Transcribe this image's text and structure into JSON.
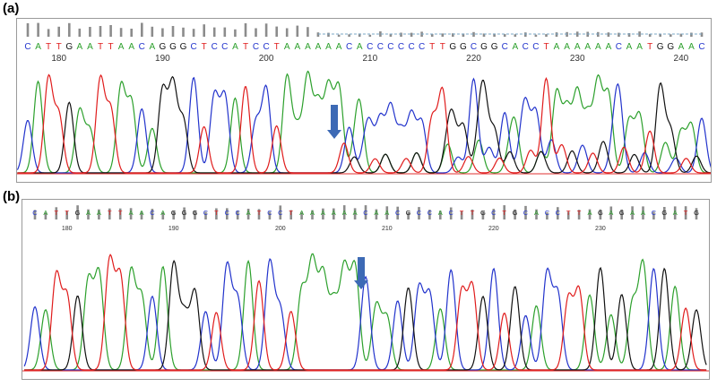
{
  "figure": {
    "panels": [
      {
        "label": "(a)",
        "sequence": "CATTGAATTAACAGGGCTCCATCCTAAAAAACACCCCCCTTGGCGGCACCTAAAAAACAATGGAAC",
        "positions": [
          "180",
          "190",
          "200",
          "210",
          "220",
          "230",
          "240"
        ]
      },
      {
        "label": "(b)",
        "sequence": "CATTGAATTAACAGGGCTCCATCCTAAAAAACAACGCCACTTGCTGCACCTTAGAGAACGATG",
        "positions": [
          "180",
          "190",
          "200",
          "210",
          "220",
          "230"
        ]
      }
    ]
  },
  "colors": {
    "A": "#2ca02c",
    "C": "#2233cc",
    "G": "#111111",
    "T": "#e01c1c",
    "arrow": "#3d6ab5",
    "quality": "#8c8c8c"
  }
}
